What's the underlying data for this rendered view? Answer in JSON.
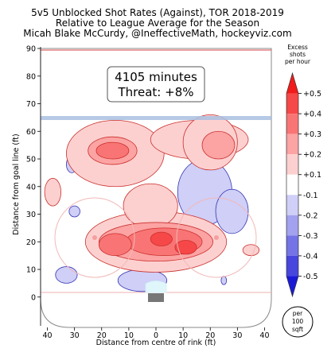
{
  "chart_data": {
    "type": "heatmap",
    "title_lines": [
      "5v5 Unblocked Shot Rates (Against), TOR 2018-2019",
      "Relative to League Average for the Season",
      "Micah Blake McCurdy, @IneffectiveMath, hockeyviz.com"
    ],
    "xlabel": "Distance from centre of rink (ft)",
    "ylabel": "Distance from goal line (ft)",
    "xlim": [
      -42.5,
      42.5
    ],
    "ylim": [
      -11,
      90
    ],
    "x_ticks": [
      40,
      30,
      20,
      10,
      0,
      10,
      20,
      30,
      40
    ],
    "x_tick_values": [
      -40,
      -30,
      -20,
      -10,
      0,
      10,
      20,
      30,
      40
    ],
    "y_ticks": [
      0,
      10,
      20,
      30,
      40,
      50,
      60,
      70,
      80,
      90
    ],
    "annotation": {
      "line1": "4105 minutes",
      "line2": "Threat: +8%"
    },
    "colorbar": {
      "title_lines": [
        "Excess",
        "shots",
        "per hour"
      ],
      "levels": [
        {
          "label": "+0.5",
          "value": 0.5
        },
        {
          "label": "+0.4",
          "value": 0.4
        },
        {
          "label": "+0.3",
          "value": 0.3
        },
        {
          "label": "+0.2",
          "value": 0.2
        },
        {
          "label": "+0.1",
          "value": 0.1
        },
        {
          "label": "-0.1",
          "value": -0.1
        },
        {
          "label": "-0.2",
          "value": -0.2
        },
        {
          "label": "-0.3",
          "value": -0.3
        },
        {
          "label": "-0.4",
          "value": -0.4
        },
        {
          "label": "-0.5",
          "value": -0.5
        }
      ],
      "colors": [
        "#f21b1b",
        "#f64848",
        "#f97575",
        "#fca3a3",
        "#fdd0d0",
        "#ffffff",
        "#cfcff7",
        "#a2a2ef",
        "#7474e6",
        "#4747de",
        "#1a1ad6"
      ],
      "unit_lines": [
        "per",
        "100",
        "sqft"
      ]
    },
    "regions": [
      {
        "level": 0.1,
        "cx": 0,
        "cy": 20,
        "rx": 26,
        "ry": 11
      },
      {
        "level": 0.1,
        "cx": -2,
        "cy": 33,
        "rx": 10,
        "ry": 8
      },
      {
        "level": 0.1,
        "cx": -15,
        "cy": 52,
        "rx": 18,
        "ry": 12
      },
      {
        "level": 0.1,
        "cx": 16,
        "cy": 57,
        "rx": 18,
        "ry": 7
      },
      {
        "level": 0.1,
        "cx": 20,
        "cy": 56,
        "rx": 10,
        "ry": 10
      },
      {
        "level": 0.1,
        "cx": -38,
        "cy": 38,
        "rx": 3,
        "ry": 5
      },
      {
        "level": 0.1,
        "cx": 35,
        "cy": 17,
        "rx": 3,
        "ry": 2
      },
      {
        "level": 0.2,
        "cx": 0,
        "cy": 20,
        "rx": 21,
        "ry": 7
      },
      {
        "level": 0.2,
        "cx": -16,
        "cy": 53,
        "rx": 9,
        "ry": 5
      },
      {
        "level": 0.2,
        "cx": 23,
        "cy": 55,
        "rx": 6,
        "ry": 5
      },
      {
        "level": 0.3,
        "cx": 3,
        "cy": 20,
        "rx": 14,
        "ry": 5
      },
      {
        "level": 0.3,
        "cx": -15,
        "cy": 19,
        "rx": 6,
        "ry": 4
      },
      {
        "level": 0.3,
        "cx": -16,
        "cy": 53,
        "rx": 6,
        "ry": 3
      },
      {
        "level": 0.4,
        "cx": 2,
        "cy": 21,
        "rx": 4,
        "ry": 2.5
      },
      {
        "level": 0.4,
        "cx": 11,
        "cy": 18,
        "rx": 4,
        "ry": 2.5
      },
      {
        "level": -0.1,
        "cx": 18,
        "cy": 38,
        "rx": 10,
        "ry": 12
      },
      {
        "level": -0.1,
        "cx": 28,
        "cy": 31,
        "rx": 6,
        "ry": 8
      },
      {
        "level": -0.1,
        "cx": -5,
        "cy": 6,
        "rx": 9,
        "ry": 4
      },
      {
        "level": -0.1,
        "cx": -33,
        "cy": 8,
        "rx": 4,
        "ry": 3
      },
      {
        "level": -0.1,
        "cx": -31,
        "cy": 48,
        "rx": 2,
        "ry": 3
      },
      {
        "level": -0.1,
        "cx": -30,
        "cy": 31,
        "rx": 2,
        "ry": 2
      },
      {
        "level": -0.1,
        "cx": 25,
        "cy": 6,
        "rx": 1,
        "ry": 1.5
      }
    ]
  }
}
